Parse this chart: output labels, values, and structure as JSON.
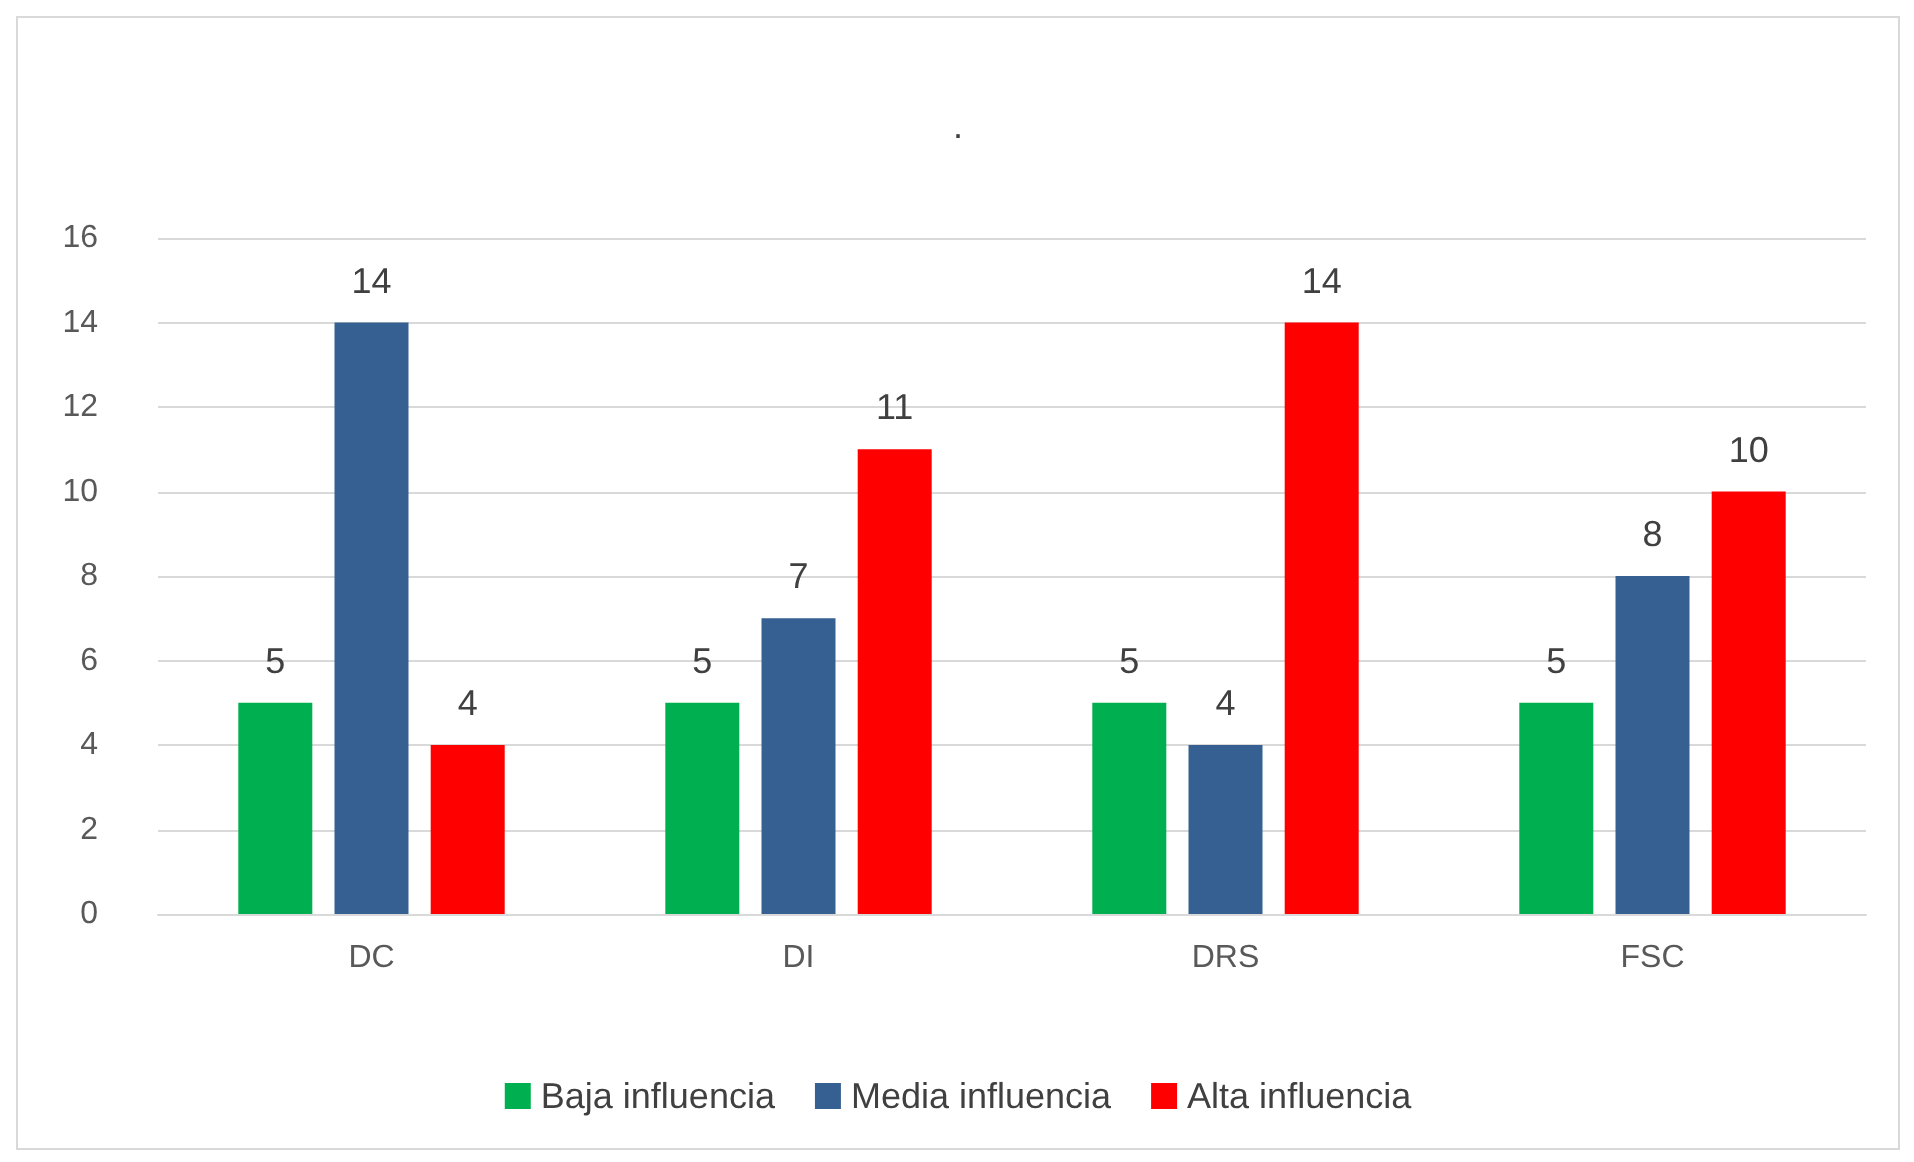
{
  "chart_data": {
    "type": "bar",
    "title": ".",
    "categories": [
      "DC",
      "DI",
      "DRS",
      "FSC"
    ],
    "series": [
      {
        "name": "Baja influencia",
        "color": "#00b050",
        "values": [
          5,
          5,
          5,
          5
        ]
      },
      {
        "name": "Media influencia",
        "color": "#376092",
        "values": [
          14,
          7,
          4,
          8
        ]
      },
      {
        "name": "Alta influencia",
        "color": "#ff0000",
        "values": [
          4,
          11,
          14,
          10
        ]
      }
    ],
    "ylim": [
      0,
      16
    ],
    "yticks": [
      0,
      2,
      4,
      6,
      8,
      10,
      12,
      14,
      16
    ],
    "grid": "y",
    "legend": "bottom",
    "data_labels": true
  }
}
